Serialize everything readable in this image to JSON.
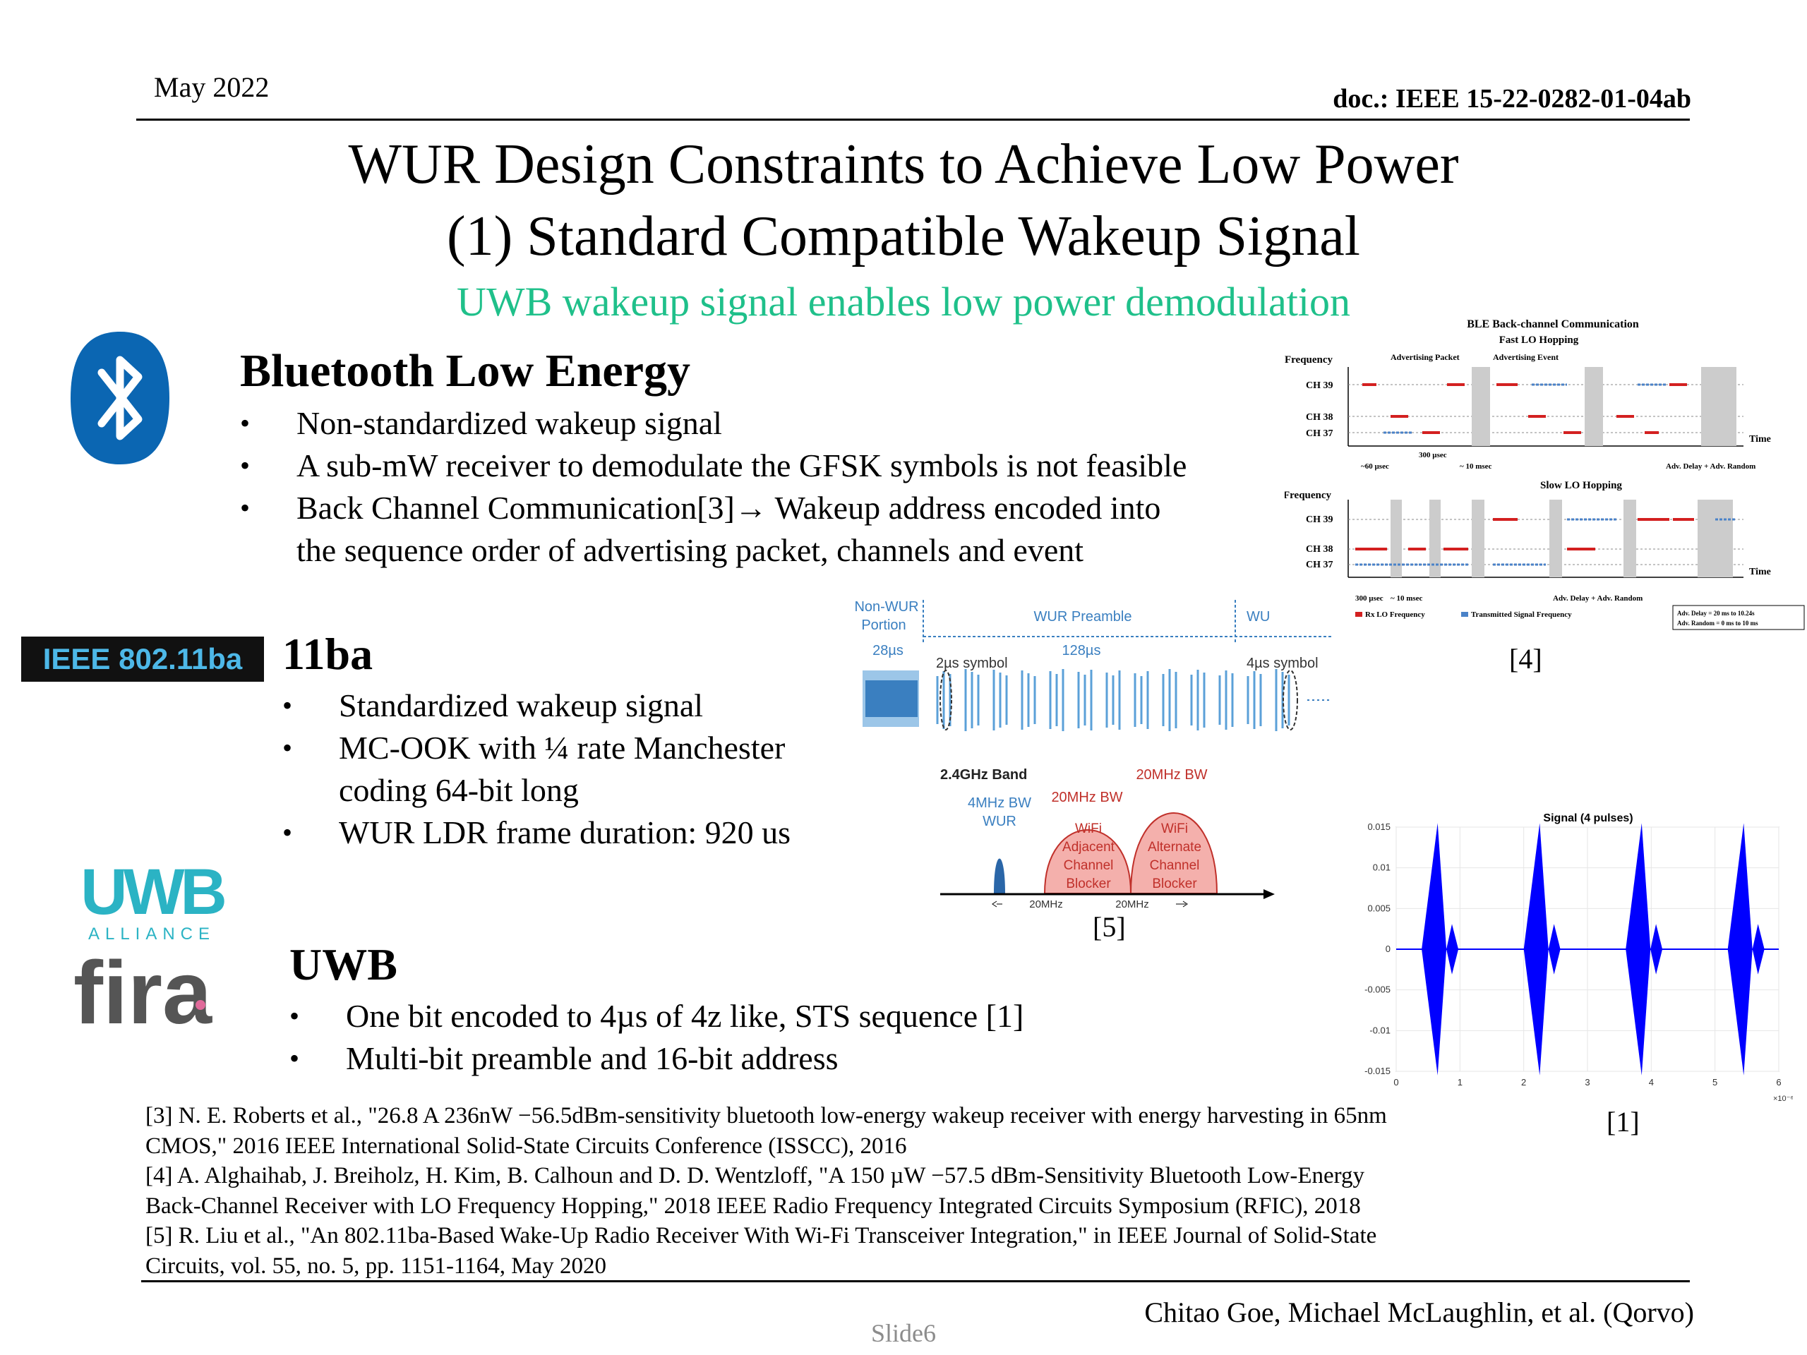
{
  "header": {
    "date": "May 2022",
    "doc": "doc.: IEEE 15-22-0282-01-04ab"
  },
  "title": {
    "line1": "WUR Design Constraints to Achieve Low Power",
    "line2": "(1) Standard Compatible Wakeup Signal"
  },
  "subtitle": "UWB wakeup signal enables low power demodulation",
  "ble": {
    "heading": "Bluetooth Low Energy",
    "bullets": [
      "Non-standardized wakeup signal",
      "A sub-mW receiver to demodulate the GFSK symbols is not feasible",
      "Back Channel Communication[3]→ Wakeup address encoded into",
      "the sequence order of advertising packet, channels and event"
    ]
  },
  "ba": {
    "logo_text": "IEEE 802.11ba",
    "heading": "11ba",
    "bullets": [
      "Standardized wakeup signal",
      "MC-OOK with ¼ rate Manchester",
      "coding 64-bit long",
      "WUR LDR frame duration: 920 us"
    ]
  },
  "uwb": {
    "logo_uwb": "UWB",
    "logo_alliance": "ALLIANCE",
    "logo_fira": "fira",
    "heading": "UWB",
    "bullets": [
      "One bit encoded to 4µs of 4z like, STS sequence [1]",
      "Multi-bit preamble and 16-bit address"
    ]
  },
  "fig_ble": {
    "title": "BLE Back-channel Communication",
    "fast": "Fast LO Hopping",
    "slow": "Slow LO Hopping",
    "frequency": "Frequency",
    "time": "Time",
    "ch39": "CH 39",
    "ch38": "CH 38",
    "ch37": "CH 37",
    "adv_packet": "Advertising Packet",
    "adv_event": "Advertising Event",
    "t300": "300 µsec",
    "t60": "~60 µsec",
    "t10": "~ 10 msec",
    "adv_delay": "Adv. Delay + Adv. Random",
    "legend_rx": "Rx LO Frequency",
    "legend_tx": "Transmitted Signal Frequency",
    "note1": "Adv. Delay = 20 ms to 10.24s",
    "note2": "Adv. Random = 0 ms to 10 ms",
    "cite": "[4]"
  },
  "fig_wur": {
    "nonwur": "Non-WUR",
    "portion": "Portion",
    "preamble": "WUR Preamble",
    "wu": "WU",
    "t28": "28µs",
    "t128": "128µs",
    "sym2": "2µs symbol",
    "sym4": "4µs symbol"
  },
  "fig_band": {
    "band": "2.4GHz Band",
    "bw4": "4MHz BW",
    "wur": "WUR",
    "bw20a": "20MHz BW",
    "bw20b": "20MHz BW",
    "adj": [
      "WiFi",
      "Adjacent",
      "Channel",
      "Blocker"
    ],
    "alt": [
      "WiFi",
      "Alternate",
      "Channel",
      "Blocker"
    ],
    "sp1": "20MHz",
    "sp2": "20MHz",
    "cite": "[5]"
  },
  "fig_signal": {
    "title": "Signal (4 pulses)",
    "yticks": [
      "0.015",
      "0.01",
      "0.005",
      "0",
      "-0.005",
      "-0.01",
      "-0.015"
    ],
    "xticks": [
      "0",
      "1",
      "2",
      "3",
      "4",
      "5",
      "6"
    ],
    "xexp": "×10⁻⁶",
    "cite": "[1]"
  },
  "chart_data": {
    "type": "line",
    "title": "Signal (4 pulses)",
    "xlabel": "",
    "ylabel": "",
    "xlim": [
      0,
      6e-06
    ],
    "ylim": [
      -0.015,
      0.015
    ],
    "series": [
      {
        "pulse_centers_x": [
          6.5e-07,
          2.25e-06,
          3.85e-06,
          5.45e-06
        ],
        "peak_amplitude": 0.0155
      }
    ]
  },
  "refs": [
    "[3] N. E. Roberts et al., \"26.8 A 236nW −56.5dBm-sensitivity bluetooth low-energy wakeup receiver with energy harvesting in 65nm",
    "CMOS,\" 2016 IEEE International Solid-State Circuits Conference (ISSCC), 2016",
    "[4] A. Alghaihab, J. Breiholz, H. Kim, B. Calhoun and D. D. Wentzloff, \"A 150 µW −57.5 dBm-Sensitivity Bluetooth Low-Energy",
    "Back-Channel Receiver with LO Frequency Hopping,\" 2018 IEEE Radio Frequency Integrated Circuits Symposium (RFIC), 2018",
    "[5] R. Liu et al., \"An 802.11ba-Based Wake-Up Radio Receiver With Wi-Fi Transceiver Integration,\" in IEEE Journal of Solid-State",
    "Circuits, vol. 55, no. 5, pp. 1151-1164, May 2020"
  ],
  "footer": {
    "authors": "Chitao Goe, Michael McLaughlin, et al. (Qorvo)",
    "slide": "Slide6"
  },
  "colors": {
    "accent_green": "#1fc08a",
    "bt_blue": "#0b66b2",
    "wifi_red": "#d9534f",
    "uwb_teal": "#2bb3c4",
    "signal_blue": "#0000ff"
  }
}
